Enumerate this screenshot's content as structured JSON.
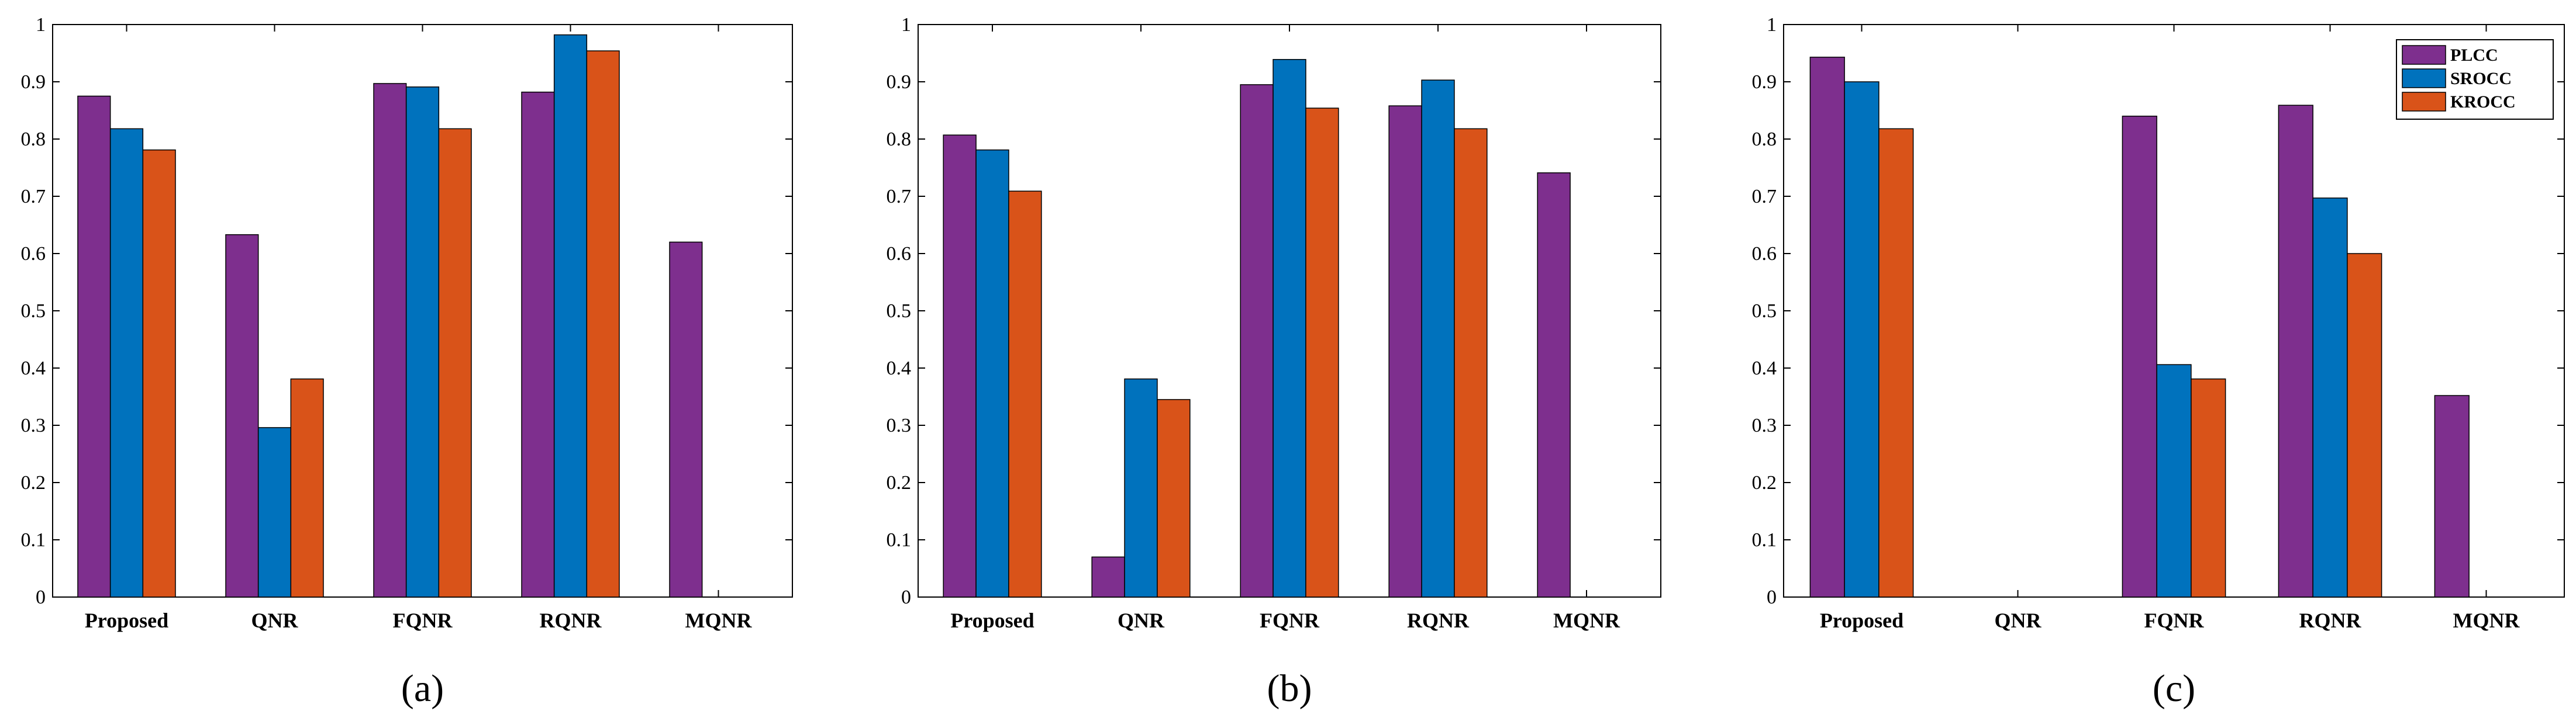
{
  "legend": [
    "PLCC",
    "SROCC",
    "KROCC"
  ],
  "colors": {
    "PLCC": "#7e2f8e",
    "SROCC": "#0072bd",
    "KROCC": "#d95319"
  },
  "chart_data": [
    {
      "type": "bar",
      "panel_label": "(a)",
      "categories": [
        "Proposed",
        "QNR",
        "FQNR",
        "RQNR",
        "MQNR"
      ],
      "ylim": [
        0,
        1
      ],
      "yticks": [
        "0",
        "0.1",
        "0.2",
        "0.3",
        "0.4",
        "0.5",
        "0.6",
        "0.7",
        "0.8",
        "0.9",
        "1"
      ],
      "series": [
        {
          "name": "PLCC",
          "values": [
            0.875,
            0.633,
            0.897,
            0.882,
            0.62
          ]
        },
        {
          "name": "SROCC",
          "values": [
            0.818,
            0.296,
            0.891,
            0.982,
            0
          ]
        },
        {
          "name": "KROCC",
          "values": [
            0.781,
            0.381,
            0.818,
            0.954,
            0
          ]
        }
      ]
    },
    {
      "type": "bar",
      "panel_label": "(b)",
      "categories": [
        "Proposed",
        "QNR",
        "FQNR",
        "RQNR",
        "MQNR"
      ],
      "ylim": [
        0,
        1
      ],
      "yticks": [
        "0",
        "0.1",
        "0.2",
        "0.3",
        "0.4",
        "0.5",
        "0.6",
        "0.7",
        "0.8",
        "0.9",
        "1"
      ],
      "series": [
        {
          "name": "PLCC",
          "values": [
            0.807,
            0.07,
            0.895,
            0.858,
            0.741
          ]
        },
        {
          "name": "SROCC",
          "values": [
            0.781,
            0.381,
            0.939,
            0.903,
            0
          ]
        },
        {
          "name": "KROCC",
          "values": [
            0.709,
            0.345,
            0.854,
            0.818,
            0
          ]
        }
      ]
    },
    {
      "type": "bar",
      "panel_label": "(c)",
      "categories": [
        "Proposed",
        "QNR",
        "FQNR",
        "RQNR",
        "MQNR"
      ],
      "ylim": [
        0,
        1
      ],
      "yticks": [
        "0",
        "0.1",
        "0.2",
        "0.3",
        "0.4",
        "0.5",
        "0.6",
        "0.7",
        "0.8",
        "0.9",
        "1"
      ],
      "legend_position": "top-right",
      "series": [
        {
          "name": "PLCC",
          "values": [
            0.943,
            0,
            0.84,
            0.859,
            0.352
          ]
        },
        {
          "name": "SROCC",
          "values": [
            0.9,
            0,
            0.406,
            0.697,
            0
          ]
        },
        {
          "name": "KROCC",
          "values": [
            0.818,
            0,
            0.381,
            0.6,
            0
          ]
        }
      ]
    }
  ]
}
